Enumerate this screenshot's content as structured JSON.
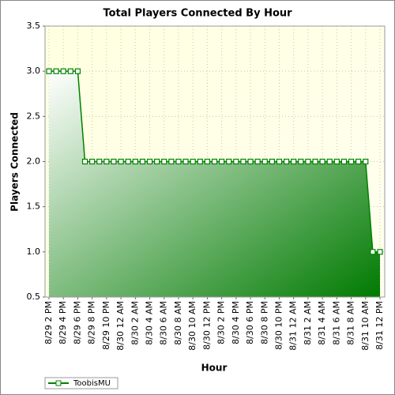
{
  "chart_data": {
    "type": "line",
    "title": "Total Players Connected By Hour",
    "x_label": "Hour",
    "y_label": "Players Connected",
    "categories": [
      "8/29 2 PM",
      null,
      "8/29 4 PM",
      null,
      "8/29 6 PM",
      null,
      "8/29 8 PM",
      null,
      "8/29 10 PM",
      null,
      "8/30 12 AM",
      null,
      "8/30 2 AM",
      null,
      "8/30 4 AM",
      null,
      "8/30 6 AM",
      null,
      "8/30 8 AM",
      null,
      "8/30 10 AM",
      null,
      "8/30 12 PM",
      null,
      "8/30 2 PM",
      null,
      "8/30 4 PM",
      null,
      "8/30 6 PM",
      null,
      "8/30 8 PM",
      null,
      "8/30 10 PM",
      null,
      "8/31 12 AM",
      null,
      "8/31 2 AM",
      null,
      "8/31 4 AM",
      null,
      "8/31 6 AM",
      null,
      "8/31 8 AM",
      null,
      "8/31 10 AM",
      null,
      "8/31 12 PM"
    ],
    "series": [
      {
        "name": "ToobisMU",
        "color": "#008000",
        "values": [
          3,
          3,
          3,
          3,
          3,
          2,
          2,
          2,
          2,
          2,
          2,
          2,
          2,
          2,
          2,
          2,
          2,
          2,
          2,
          2,
          2,
          2,
          2,
          2,
          2,
          2,
          2,
          2,
          2,
          2,
          2,
          2,
          2,
          2,
          2,
          2,
          2,
          2,
          2,
          2,
          2,
          2,
          2,
          2,
          2,
          1,
          1
        ]
      }
    ],
    "ylim": [
      0.5,
      3.5
    ],
    "yticks": [
      0.5,
      {
        "value": 1,
        "label": "1.0"
      },
      1.5,
      {
        "value": 2,
        "label": "2.0"
      },
      2.5,
      {
        "value": 3,
        "label": "3.0"
      },
      3.5
    ],
    "grid": true,
    "legend": "bottom-left"
  }
}
